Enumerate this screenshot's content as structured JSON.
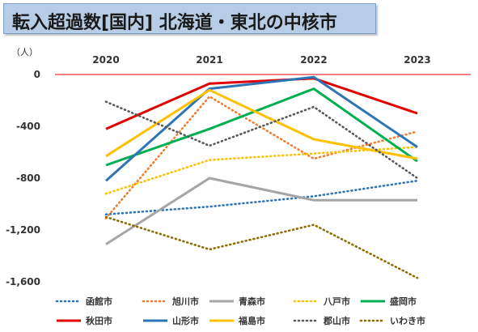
{
  "chart_data": {
    "type": "line",
    "title": "転入超過数[国内]  北海道・東北の中核市",
    "ylabel": "（人）",
    "xlabel": "",
    "categories": [
      "2020",
      "2021",
      "2022",
      "2023"
    ],
    "ylim": [
      -1600,
      0
    ],
    "yticks": [
      0,
      -400,
      -800,
      -1200,
      -1600
    ],
    "ytick_labels": [
      "0",
      "-400",
      "-800",
      "-1,200",
      "-1,600"
    ],
    "zero_line_color": "#e00000",
    "legend_position": "bottom",
    "series": [
      {
        "name": "函館市",
        "values": [
          -1080,
          -1020,
          -940,
          -820
        ],
        "color": "#2e75b6",
        "dash": "dot"
      },
      {
        "name": "旭川市",
        "values": [
          -1110,
          -170,
          -650,
          -440
        ],
        "color": "#ed7d31",
        "dash": "dot"
      },
      {
        "name": "青森市",
        "values": [
          -1310,
          -800,
          -970,
          -970
        ],
        "color": "#a5a5a5",
        "dash": "solid"
      },
      {
        "name": "八戸市",
        "values": [
          -920,
          -660,
          -610,
          -560
        ],
        "color": "#ffc000",
        "dash": "dot"
      },
      {
        "name": "盛岡市",
        "values": [
          -700,
          -420,
          -110,
          -670
        ],
        "color": "#00b050",
        "dash": "solid"
      },
      {
        "name": "秋田市",
        "values": [
          -420,
          -70,
          -30,
          -300
        ],
        "color": "#e00000",
        "dash": "solid"
      },
      {
        "name": "山形市",
        "values": [
          -820,
          -110,
          -20,
          -560
        ],
        "color": "#2e75b6",
        "dash": "solid"
      },
      {
        "name": "福島市",
        "values": [
          -630,
          -120,
          -500,
          -650
        ],
        "color": "#ffc000",
        "dash": "solid"
      },
      {
        "name": "郡山市",
        "values": [
          -210,
          -550,
          -250,
          -800
        ],
        "color": "#595959",
        "dash": "dot"
      },
      {
        "name": "いわき市",
        "values": [
          -1100,
          -1350,
          -1160,
          -1570
        ],
        "color": "#8c6d00",
        "dash": "dot"
      }
    ]
  }
}
